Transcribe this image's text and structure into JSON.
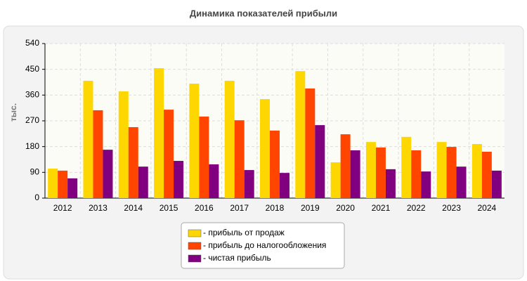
{
  "chart_data": {
    "type": "bar",
    "title": "Динамика показателей прибыли",
    "y_label": "тыс.",
    "categories": [
      "2012",
      "2013",
      "2014",
      "2015",
      "2016",
      "2017",
      "2018",
      "2019",
      "2020",
      "2021",
      "2022",
      "2023",
      "2024"
    ],
    "series": [
      {
        "name": "- прибыль от продаж",
        "color": "#ffd700",
        "values": [
          103,
          410,
          373,
          454,
          400,
          410,
          346,
          444,
          125,
          196,
          214,
          196,
          189
        ]
      },
      {
        "name": "- прибыль до налогообложения",
        "color": "#ff4500",
        "values": [
          96,
          307,
          248,
          309,
          285,
          272,
          236,
          383,
          223,
          177,
          167,
          179,
          162
        ]
      },
      {
        "name": "- чистая прибыль",
        "color": "#800080",
        "values": [
          69,
          169,
          110,
          130,
          118,
          98,
          88,
          255,
          167,
          101,
          93,
          110,
          96
        ]
      }
    ],
    "ylim": [
      0,
      540
    ],
    "yticks": [
      0,
      90,
      180,
      270,
      360,
      450,
      540
    ],
    "grid": true
  }
}
